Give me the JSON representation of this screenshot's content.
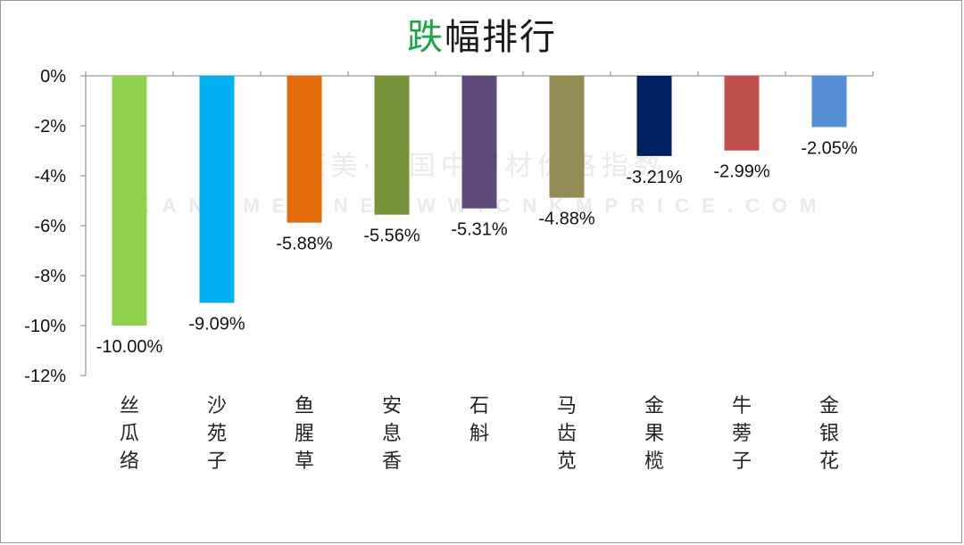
{
  "chart_data": {
    "type": "bar",
    "title_accent": "跌",
    "title_rest": "幅排行",
    "categories": [
      "丝瓜络",
      "沙苑子",
      "鱼腥草",
      "安息香",
      "石斛",
      "马齿苋",
      "金果榄",
      "牛蒡子",
      "金银花"
    ],
    "values": [
      -10.0,
      -9.09,
      -5.88,
      -5.56,
      -5.31,
      -4.88,
      -3.21,
      -2.99,
      -2.05
    ],
    "value_labels": [
      "-10.00%",
      "-9.09%",
      "-5.88%",
      "-5.56%",
      "-5.31%",
      "-4.88%",
      "-3.21%",
      "-2.99%",
      "-2.05%"
    ],
    "colors": [
      "#92d050",
      "#00b0f0",
      "#e36c0a",
      "#77933c",
      "#604a7b",
      "#948a54",
      "#002060",
      "#c0504d",
      "#558ed5"
    ],
    "ylim": [
      -12,
      0
    ],
    "yticks": [
      0,
      -2,
      -4,
      -6,
      -8,
      -10,
      -12
    ],
    "ytick_labels": [
      "0%",
      "-2%",
      "-4%",
      "-6%",
      "-8%",
      "-10%",
      "-12%"
    ],
    "xlabel": "",
    "ylabel": "",
    "grid": false,
    "watermark": {
      "line1": "康美·中国中药材价格指数",
      "line2": "KANGMEI NEWWW.CNKMPRICE.COM"
    }
  }
}
